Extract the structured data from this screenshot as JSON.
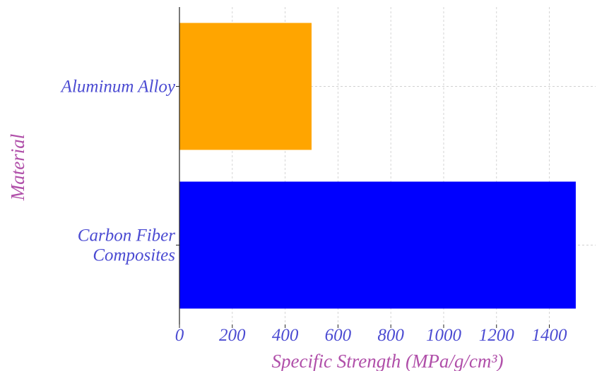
{
  "chart_data": {
    "type": "bar",
    "orientation": "horizontal",
    "categories": [
      "Aluminum Alloy",
      "Carbon Fiber Composites"
    ],
    "category_lines": [
      [
        "Aluminum Alloy"
      ],
      [
        "Carbon Fiber",
        "Composites"
      ]
    ],
    "values": [
      500,
      1500
    ],
    "bar_colors": [
      "#FFA500",
      "#0000FF"
    ],
    "xlabel": "Specific Strength (MPa/g/cm³)",
    "ylabel": "Material",
    "xlim": [
      0,
      1575
    ],
    "xticks": [
      0,
      200,
      400,
      600,
      800,
      1000,
      1200,
      1400
    ],
    "grid": true,
    "tick_label_color": "#4B4BD2",
    "axis_title_color": "#B04FA9"
  }
}
